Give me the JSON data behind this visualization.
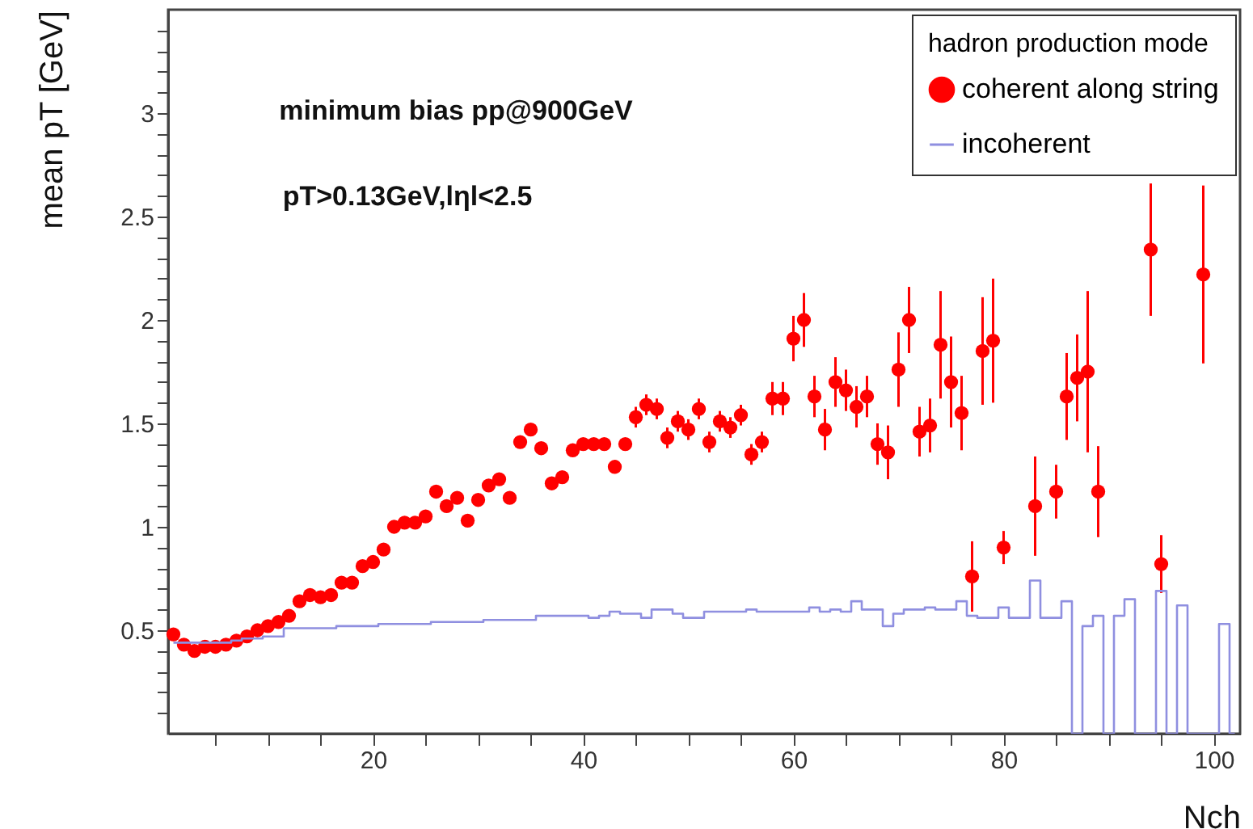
{
  "chart_data": {
    "type": "scatter",
    "xlabel": "Nch",
    "ylabel": "mean pT [GeV]",
    "legend_title": "hadron production mode",
    "annotations": [
      "minimum bias pp@900GeV",
      "pT>0.13GeV,lηl<2.5"
    ],
    "xlim": [
      0.5,
      102.5
    ],
    "ylim": [
      0,
      3.5
    ],
    "xticks": [
      {
        "value": 5,
        "label": null
      },
      {
        "value": 10,
        "label": null
      },
      {
        "value": 15,
        "label": null
      },
      20,
      {
        "value": 25,
        "label": null
      },
      {
        "value": 30,
        "label": null
      },
      {
        "value": 35,
        "label": null
      },
      40,
      {
        "value": 45,
        "label": null
      },
      {
        "value": 50,
        "label": null
      },
      {
        "value": 55,
        "label": null
      },
      60,
      {
        "value": 65,
        "label": null
      },
      {
        "value": 70,
        "label": null
      },
      {
        "value": 75,
        "label": null
      },
      80,
      {
        "value": 85,
        "label": null
      },
      {
        "value": 90,
        "label": null
      },
      {
        "value": 95,
        "label": null
      },
      100
    ],
    "yticks": [
      {
        "value": 0.1,
        "label": null
      },
      {
        "value": 0.2,
        "label": null
      },
      {
        "value": 0.3,
        "label": null
      },
      {
        "value": 0.4,
        "label": null
      },
      0.5,
      {
        "value": 0.6,
        "label": null
      },
      {
        "value": 0.7,
        "label": null
      },
      {
        "value": 0.8,
        "label": null
      },
      {
        "value": 0.9,
        "label": null
      },
      1,
      {
        "value": 1.1,
        "label": null
      },
      {
        "value": 1.2,
        "label": null
      },
      {
        "value": 1.3,
        "label": null
      },
      {
        "value": 1.4,
        "label": null
      },
      1.5,
      {
        "value": 1.6,
        "label": null
      },
      {
        "value": 1.7,
        "label": null
      },
      {
        "value": 1.8,
        "label": null
      },
      {
        "value": 1.9,
        "label": null
      },
      2,
      {
        "value": 2.1,
        "label": null
      },
      {
        "value": 2.2,
        "label": null
      },
      {
        "value": 2.3,
        "label": null
      },
      {
        "value": 2.4,
        "label": null
      },
      2.5,
      {
        "value": 2.6,
        "label": null
      },
      {
        "value": 2.7,
        "label": null
      },
      {
        "value": 2.8,
        "label": null
      },
      {
        "value": 2.9,
        "label": null
      },
      3,
      {
        "value": 3.1,
        "label": null
      },
      {
        "value": 3.2,
        "label": null
      },
      {
        "value": 3.3,
        "label": null
      },
      {
        "value": 3.4,
        "label": null
      }
    ],
    "legend": "top right",
    "series": [
      {
        "name": "coherent along string",
        "color": "#ff0000",
        "marker": "circle",
        "x": [
          1,
          2,
          3,
          4,
          5,
          6,
          7,
          8,
          9,
          10,
          11,
          12,
          13,
          14,
          15,
          16,
          17,
          18,
          19,
          20,
          21,
          22,
          23,
          24,
          25,
          26,
          27,
          28,
          29,
          30,
          31,
          32,
          33,
          34,
          35,
          36,
          37,
          38,
          39,
          40,
          41,
          42,
          43,
          44,
          45,
          46,
          47,
          48,
          49,
          50,
          51,
          52,
          53,
          54,
          55,
          56,
          57,
          58,
          59,
          60,
          61,
          62,
          63,
          64,
          65,
          66,
          67,
          68,
          69,
          70,
          71,
          72,
          73,
          74,
          75,
          76,
          77,
          78,
          79,
          80,
          81,
          83,
          85,
          86,
          87,
          88,
          89,
          94,
          95,
          99
        ],
        "values": [
          0.48,
          0.43,
          0.4,
          0.42,
          0.42,
          0.43,
          0.45,
          0.47,
          0.5,
          0.52,
          0.54,
          0.57,
          0.64,
          0.67,
          0.66,
          0.67,
          0.73,
          0.73,
          0.81,
          0.83,
          0.89,
          1.0,
          1.02,
          1.02,
          1.05,
          1.17,
          1.1,
          1.14,
          1.03,
          1.13,
          1.2,
          1.23,
          1.14,
          1.41,
          1.47,
          1.38,
          1.21,
          1.24,
          1.37,
          1.4,
          1.4,
          1.4,
          1.29,
          1.4,
          1.53,
          1.59,
          1.57,
          1.43,
          1.51,
          1.47,
          1.57,
          1.41,
          1.51,
          1.48,
          1.54,
          1.35,
          1.41,
          1.62,
          1.62,
          1.91,
          2.0,
          1.63,
          1.47,
          1.7,
          1.66,
          1.58,
          1.63,
          1.4,
          1.36,
          1.76,
          2.0,
          1.46,
          1.49,
          1.88,
          1.7,
          1.55,
          0.76,
          1.85,
          1.9,
          0.9,
          null,
          1.1,
          1.17,
          1.63,
          1.72,
          1.75,
          1.17,
          2.34,
          0.82,
          2.22
        ],
        "errors": [
          0.02,
          0.02,
          0.02,
          0.02,
          0.02,
          0.02,
          0.02,
          0.02,
          0.02,
          0.02,
          0.02,
          0.02,
          0.02,
          0.02,
          0.02,
          0.02,
          0.02,
          0.02,
          0.02,
          0.02,
          0.02,
          0.02,
          0.02,
          0.02,
          0.02,
          0.02,
          0.02,
          0.02,
          0.02,
          0.02,
          0.03,
          0.03,
          0.03,
          0.03,
          0.03,
          0.03,
          0.03,
          0.03,
          0.03,
          0.03,
          0.03,
          0.03,
          0.03,
          0.03,
          0.05,
          0.05,
          0.05,
          0.05,
          0.05,
          0.05,
          0.05,
          0.05,
          0.05,
          0.05,
          0.05,
          0.05,
          0.05,
          0.08,
          0.08,
          0.11,
          0.13,
          0.1,
          0.1,
          0.12,
          0.1,
          0.1,
          0.1,
          0.1,
          0.13,
          0.18,
          0.16,
          0.12,
          0.13,
          0.26,
          0.22,
          0.18,
          0.17,
          0.26,
          0.3,
          0.08,
          null,
          0.24,
          0.13,
          0.21,
          0.21,
          0.39,
          0.22,
          0.32,
          0.14,
          0.43
        ]
      },
      {
        "name": "incoherent",
        "type": "step",
        "color": "#8f8fe0",
        "marker": "none",
        "x": [
          1,
          2,
          3,
          4,
          5,
          6,
          7,
          8,
          9,
          10,
          11,
          12,
          13,
          14,
          15,
          16,
          17,
          18,
          19,
          20,
          21,
          22,
          23,
          24,
          25,
          26,
          27,
          28,
          29,
          30,
          31,
          32,
          33,
          34,
          35,
          36,
          37,
          38,
          39,
          40,
          41,
          42,
          43,
          44,
          45,
          46,
          47,
          48,
          49,
          50,
          51,
          52,
          53,
          54,
          55,
          56,
          57,
          58,
          59,
          60,
          61,
          62,
          63,
          64,
          65,
          66,
          67,
          68,
          69,
          70,
          71,
          72,
          73,
          74,
          75,
          76,
          77,
          78,
          79,
          80,
          81,
          82,
          83,
          84,
          85,
          86,
          87,
          88,
          89,
          90,
          91,
          92,
          93,
          94,
          95,
          96,
          97,
          98,
          99,
          100,
          101,
          102
        ],
        "values": [
          0.44,
          0.44,
          0.44,
          0.44,
          0.44,
          0.44,
          0.45,
          0.46,
          0.46,
          0.47,
          0.47,
          0.51,
          0.51,
          0.51,
          0.51,
          0.51,
          0.52,
          0.52,
          0.52,
          0.52,
          0.53,
          0.53,
          0.53,
          0.53,
          0.53,
          0.54,
          0.54,
          0.54,
          0.54,
          0.54,
          0.55,
          0.55,
          0.55,
          0.55,
          0.55,
          0.57,
          0.57,
          0.57,
          0.57,
          0.57,
          0.56,
          0.57,
          0.59,
          0.58,
          0.58,
          0.56,
          0.6,
          0.6,
          0.58,
          0.56,
          0.56,
          0.59,
          0.59,
          0.59,
          0.59,
          0.6,
          0.59,
          0.59,
          0.59,
          0.59,
          0.59,
          0.61,
          0.59,
          0.6,
          0.59,
          0.64,
          0.6,
          0.6,
          0.52,
          0.58,
          0.6,
          0.6,
          0.61,
          0.6,
          0.6,
          0.64,
          0.57,
          0.56,
          0.56,
          0.61,
          0.56,
          0.56,
          0.74,
          0.56,
          0.56,
          0.64,
          0,
          0.52,
          0.57,
          0,
          0.57,
          0.65,
          0,
          0,
          0.69,
          0,
          0.62,
          0,
          0,
          0,
          0.53,
          0
        ]
      }
    ]
  }
}
